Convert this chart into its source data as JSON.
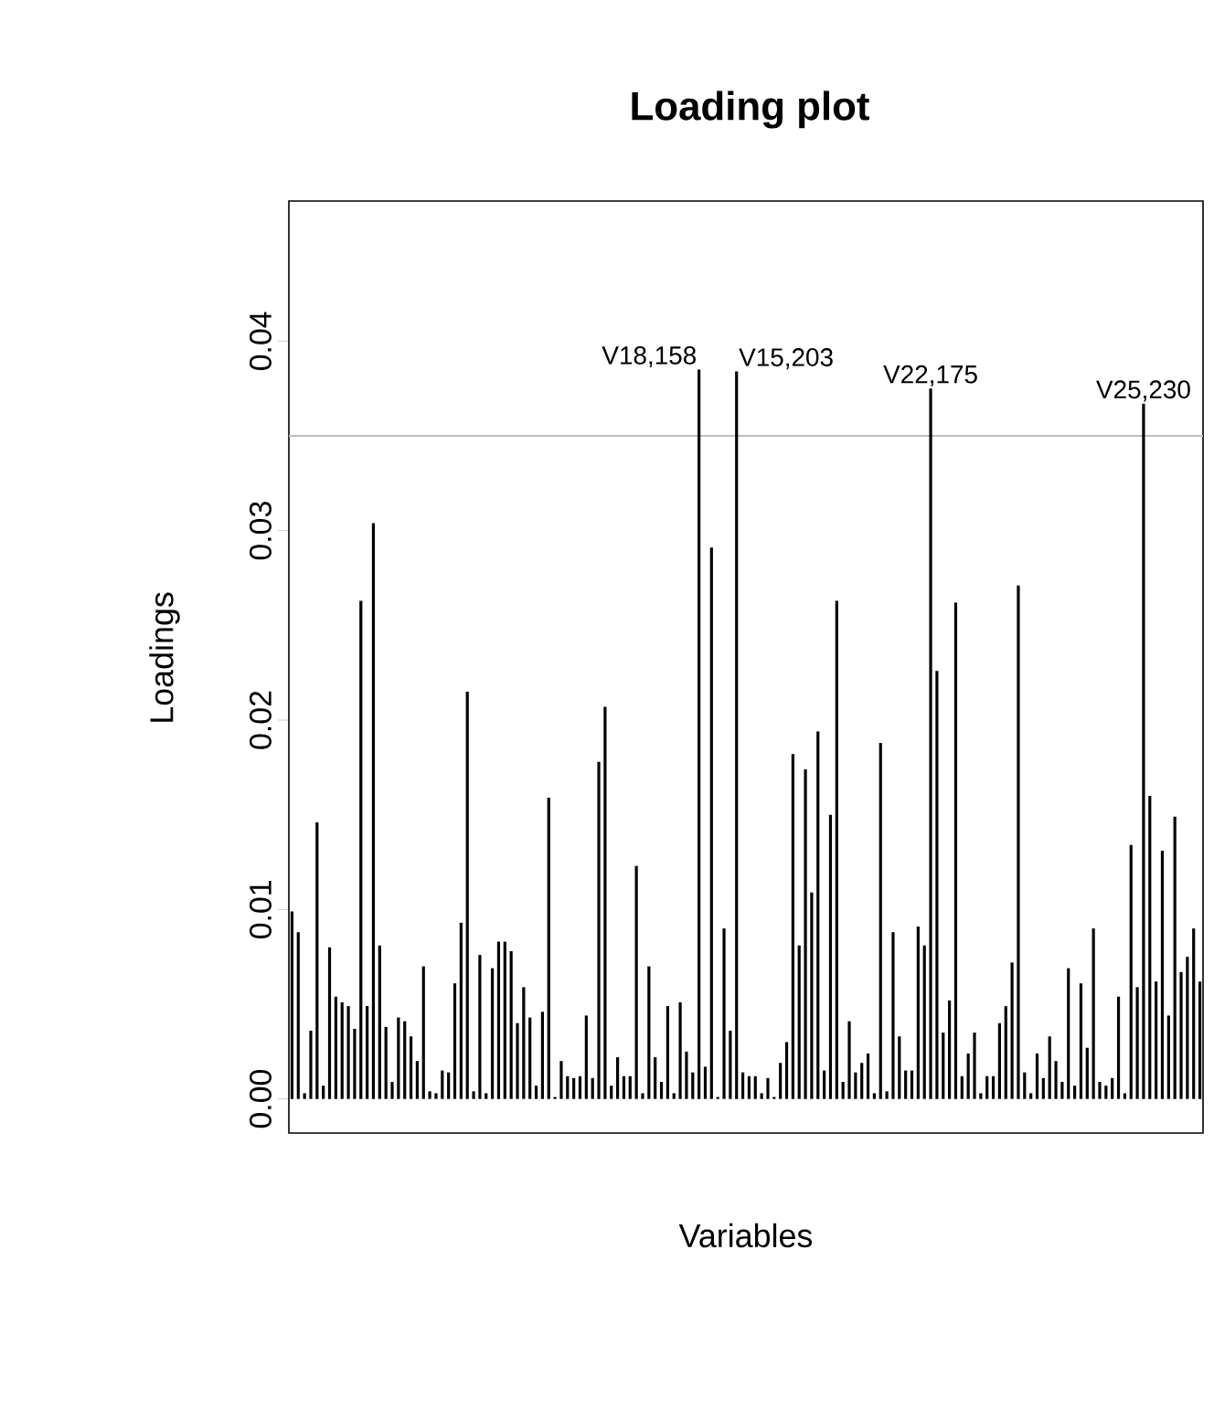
{
  "chart_data": {
    "type": "bar",
    "title": "Loading plot",
    "xlabel": "Variables",
    "ylabel": "Loadings",
    "color": "#000000",
    "categories": [
      null,
      null,
      null,
      null,
      null,
      null,
      null,
      null,
      null,
      null,
      null,
      null,
      null,
      null,
      null,
      null,
      null,
      null,
      null,
      null,
      null,
      null,
      null,
      null,
      null,
      null,
      null,
      null,
      null,
      null,
      null,
      null,
      null,
      null,
      null,
      null,
      null,
      null,
      null,
      null,
      null,
      null,
      null,
      null,
      null,
      null,
      null,
      null,
      null,
      null,
      null,
      null,
      null,
      null,
      null,
      null,
      null,
      null,
      null,
      null,
      null,
      null,
      null,
      null,
      null,
      null,
      null,
      null,
      null,
      null,
      null,
      null,
      null,
      null,
      null,
      null,
      null,
      null,
      null,
      null,
      null,
      null,
      null,
      null,
      null,
      null,
      null,
      null,
      null,
      null,
      null,
      null,
      null,
      null,
      null,
      null,
      null,
      null,
      null,
      null,
      null,
      null,
      null,
      null,
      null,
      null,
      null,
      null,
      null,
      null,
      null,
      null,
      null,
      null,
      null,
      null,
      null,
      null,
      null,
      null,
      null,
      null,
      null,
      null,
      null,
      null,
      null,
      null,
      null,
      null,
      null,
      null,
      null,
      null,
      null,
      null,
      null,
      null,
      null,
      null,
      null,
      null,
      null,
      null,
      null,
      null
    ],
    "values": [
      0.0099,
      0.0088,
      0.0003,
      0.0036,
      0.0146,
      0.0007,
      0.008,
      0.0054,
      0.0051,
      0.0049,
      0.0037,
      0.0263,
      0.0049,
      0.0304,
      0.0081,
      0.0038,
      0.0009,
      0.0043,
      0.0041,
      0.0033,
      0.002,
      0.007,
      0.0004,
      0.0003,
      0.0015,
      0.0014,
      0.0061,
      0.0093,
      0.0215,
      0.0004,
      0.0076,
      0.0003,
      0.0069,
      0.0083,
      0.0083,
      0.0078,
      0.004,
      0.0059,
      0.0043,
      0.0007,
      0.0046,
      0.0159,
      0.0001,
      0.002,
      0.0012,
      0.0011,
      0.0012,
      0.0044,
      0.0011,
      0.0178,
      0.0207,
      0.0007,
      0.0022,
      0.0012,
      0.0012,
      0.0123,
      0.0003,
      0.007,
      0.0022,
      0.0009,
      0.0049,
      0.0003,
      0.0051,
      0.0025,
      0.0014,
      0.0385,
      0.0017,
      0.0291,
      0.0001,
      0.009,
      0.0036,
      0.0384,
      0.0014,
      0.0012,
      0.0012,
      0.0003,
      0.0011,
      0.0001,
      0.0019,
      0.003,
      0.0182,
      0.0081,
      0.0174,
      0.0109,
      0.0194,
      0.0015,
      0.015,
      0.0263,
      0.0009,
      0.0041,
      0.0014,
      0.0019,
      0.0024,
      0.0003,
      0.0188,
      0.0004,
      0.0088,
      0.0033,
      0.0015,
      0.0015,
      0.0091,
      0.0081,
      0.0375,
      0.0226,
      0.0035,
      0.0052,
      0.0262,
      0.0012,
      0.0024,
      0.0035,
      0.0003,
      0.0012,
      0.0012,
      0.004,
      0.0049,
      0.0072,
      0.0271,
      0.0014,
      0.0003,
      0.0024,
      0.0011,
      0.0033,
      0.002,
      0.0009,
      0.0069,
      0.0007,
      0.0061,
      0.0027,
      0.009,
      0.0009,
      0.0007,
      0.0011,
      0.0054,
      0.0003,
      0.0134,
      0.0059,
      0.0367,
      0.016,
      0.0062,
      0.0131,
      0.0044,
      0.0149,
      0.0067,
      0.0075,
      0.009,
      0.0062
    ],
    "ylim": [
      -0.0018,
      0.0474
    ],
    "yticks": [
      {
        "value": 0,
        "label": "0.00"
      },
      {
        "value": 0.01,
        "label": "0.01"
      },
      {
        "value": 0.02,
        "label": "0.02"
      },
      {
        "value": 0.03,
        "label": "0.03"
      },
      {
        "value": 0.04,
        "label": "0.04"
      }
    ],
    "ref_lines": [
      {
        "axis": "y",
        "value": 0.035,
        "color": "#bebebe"
      }
    ],
    "annotations": [
      "V18,158",
      "V15,203",
      "V22,175",
      "V25,230"
    ]
  }
}
